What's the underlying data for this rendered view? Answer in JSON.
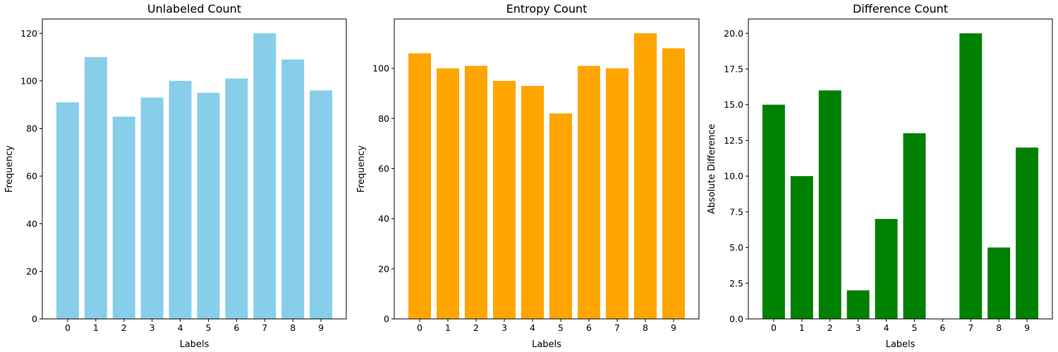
{
  "chart_data": [
    {
      "type": "bar",
      "title": "Unlabeled Count",
      "xlabel": "Labels",
      "ylabel": "Frequency",
      "categories": [
        "0",
        "1",
        "2",
        "3",
        "4",
        "5",
        "6",
        "7",
        "8",
        "9"
      ],
      "values": [
        91,
        110,
        85,
        93,
        100,
        95,
        101,
        120,
        109,
        96
      ],
      "color": "#87ceeb",
      "ylim": [
        0,
        126
      ],
      "yticks": [
        0,
        20,
        40,
        60,
        80,
        100,
        120
      ],
      "ytick_labels": [
        "0",
        "20",
        "40",
        "60",
        "80",
        "100",
        "120"
      ],
      "grid": false
    },
    {
      "type": "bar",
      "title": "Entropy Count",
      "xlabel": "Labels",
      "ylabel": "Frequency",
      "categories": [
        "0",
        "1",
        "2",
        "3",
        "4",
        "5",
        "6",
        "7",
        "8",
        "9"
      ],
      "values": [
        106,
        100,
        101,
        95,
        93,
        82,
        101,
        100,
        114,
        108
      ],
      "color": "#ffa500",
      "ylim": [
        0,
        119.7
      ],
      "yticks": [
        0,
        20,
        40,
        60,
        80,
        100
      ],
      "ytick_labels": [
        "0",
        "20",
        "40",
        "60",
        "80",
        "100"
      ],
      "grid": false
    },
    {
      "type": "bar",
      "title": "Difference Count",
      "xlabel": "Labels",
      "ylabel": "Absolute Difference",
      "categories": [
        "0",
        "1",
        "2",
        "3",
        "4",
        "5",
        "6",
        "7",
        "8",
        "9"
      ],
      "values": [
        15,
        10,
        16,
        2,
        7,
        13,
        0,
        20,
        5,
        12
      ],
      "color": "#008000",
      "ylim": [
        0,
        21
      ],
      "yticks": [
        0,
        2.5,
        5,
        7.5,
        10,
        12.5,
        15,
        17.5,
        20
      ],
      "ytick_labels": [
        "0.0",
        "2.5",
        "5.0",
        "7.5",
        "10.0",
        "12.5",
        "15.0",
        "17.5",
        "20.0"
      ],
      "grid": false
    }
  ]
}
